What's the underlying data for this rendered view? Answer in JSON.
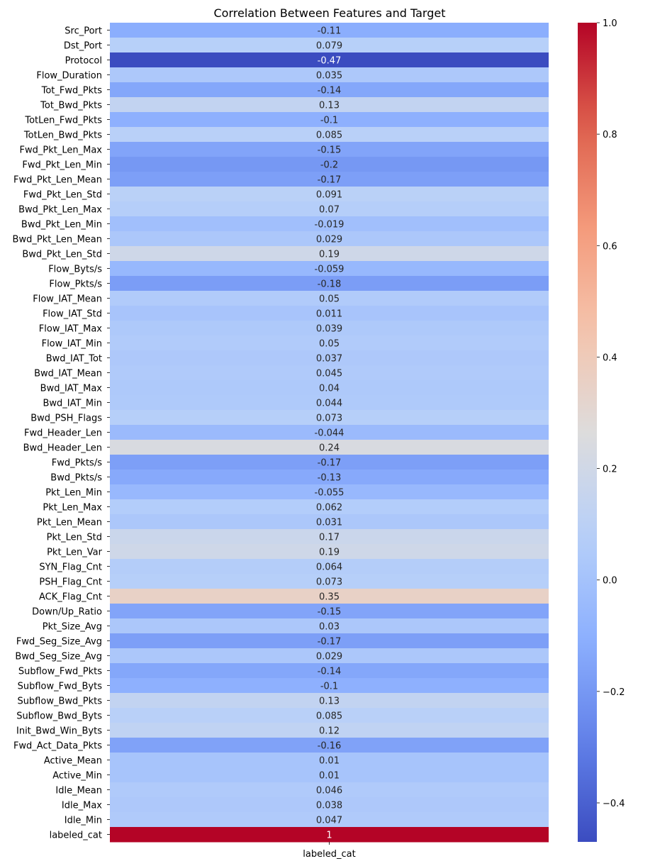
{
  "chart_data": {
    "type": "heatmap",
    "title": "Correlation Between Features and Target",
    "x_categories": [
      "labeled_cat"
    ],
    "rows": [
      {
        "label": "Src_Port",
        "value": -0.11,
        "text": "-0.11"
      },
      {
        "label": "Dst_Port",
        "value": 0.079,
        "text": "0.079"
      },
      {
        "label": "Protocol",
        "value": -0.47,
        "text": "-0.47"
      },
      {
        "label": "Flow_Duration",
        "value": 0.035,
        "text": "0.035"
      },
      {
        "label": "Tot_Fwd_Pkts",
        "value": -0.14,
        "text": "-0.14"
      },
      {
        "label": "Tot_Bwd_Pkts",
        "value": 0.13,
        "text": "0.13"
      },
      {
        "label": "TotLen_Fwd_Pkts",
        "value": -0.1,
        "text": "-0.1"
      },
      {
        "label": "TotLen_Bwd_Pkts",
        "value": 0.085,
        "text": "0.085"
      },
      {
        "label": "Fwd_Pkt_Len_Max",
        "value": -0.15,
        "text": "-0.15"
      },
      {
        "label": "Fwd_Pkt_Len_Min",
        "value": -0.2,
        "text": "-0.2"
      },
      {
        "label": "Fwd_Pkt_Len_Mean",
        "value": -0.17,
        "text": "-0.17"
      },
      {
        "label": "Fwd_Pkt_Len_Std",
        "value": 0.091,
        "text": "0.091"
      },
      {
        "label": "Bwd_Pkt_Len_Max",
        "value": 0.07,
        "text": "0.07"
      },
      {
        "label": "Bwd_Pkt_Len_Min",
        "value": -0.019,
        "text": "-0.019"
      },
      {
        "label": "Bwd_Pkt_Len_Mean",
        "value": 0.029,
        "text": "0.029"
      },
      {
        "label": "Bwd_Pkt_Len_Std",
        "value": 0.19,
        "text": "0.19"
      },
      {
        "label": "Flow_Byts/s",
        "value": -0.059,
        "text": "-0.059"
      },
      {
        "label": "Flow_Pkts/s",
        "value": -0.18,
        "text": "-0.18"
      },
      {
        "label": "Flow_IAT_Mean",
        "value": 0.05,
        "text": "0.05"
      },
      {
        "label": "Flow_IAT_Std",
        "value": 0.011,
        "text": "0.011"
      },
      {
        "label": "Flow_IAT_Max",
        "value": 0.039,
        "text": "0.039"
      },
      {
        "label": "Flow_IAT_Min",
        "value": 0.05,
        "text": "0.05"
      },
      {
        "label": "Bwd_IAT_Tot",
        "value": 0.037,
        "text": "0.037"
      },
      {
        "label": "Bwd_IAT_Mean",
        "value": 0.045,
        "text": "0.045"
      },
      {
        "label": "Bwd_IAT_Max",
        "value": 0.04,
        "text": "0.04"
      },
      {
        "label": "Bwd_IAT_Min",
        "value": 0.044,
        "text": "0.044"
      },
      {
        "label": "Bwd_PSH_Flags",
        "value": 0.073,
        "text": "0.073"
      },
      {
        "label": "Fwd_Header_Len",
        "value": -0.044,
        "text": "-0.044"
      },
      {
        "label": "Bwd_Header_Len",
        "value": 0.24,
        "text": "0.24"
      },
      {
        "label": "Fwd_Pkts/s",
        "value": -0.17,
        "text": "-0.17"
      },
      {
        "label": "Bwd_Pkts/s",
        "value": -0.13,
        "text": "-0.13"
      },
      {
        "label": "Pkt_Len_Min",
        "value": -0.055,
        "text": "-0.055"
      },
      {
        "label": "Pkt_Len_Max",
        "value": 0.062,
        "text": "0.062"
      },
      {
        "label": "Pkt_Len_Mean",
        "value": 0.031,
        "text": "0.031"
      },
      {
        "label": "Pkt_Len_Std",
        "value": 0.17,
        "text": "0.17"
      },
      {
        "label": "Pkt_Len_Var",
        "value": 0.19,
        "text": "0.19"
      },
      {
        "label": "SYN_Flag_Cnt",
        "value": 0.064,
        "text": "0.064"
      },
      {
        "label": "PSH_Flag_Cnt",
        "value": 0.073,
        "text": "0.073"
      },
      {
        "label": "ACK_Flag_Cnt",
        "value": 0.35,
        "text": "0.35"
      },
      {
        "label": "Down/Up_Ratio",
        "value": -0.15,
        "text": "-0.15"
      },
      {
        "label": "Pkt_Size_Avg",
        "value": 0.03,
        "text": "0.03"
      },
      {
        "label": "Fwd_Seg_Size_Avg",
        "value": -0.17,
        "text": "-0.17"
      },
      {
        "label": "Bwd_Seg_Size_Avg",
        "value": 0.029,
        "text": "0.029"
      },
      {
        "label": "Subflow_Fwd_Pkts",
        "value": -0.14,
        "text": "-0.14"
      },
      {
        "label": "Subflow_Fwd_Byts",
        "value": -0.1,
        "text": "-0.1"
      },
      {
        "label": "Subflow_Bwd_Pkts",
        "value": 0.13,
        "text": "0.13"
      },
      {
        "label": "Subflow_Bwd_Byts",
        "value": 0.085,
        "text": "0.085"
      },
      {
        "label": "Init_Bwd_Win_Byts",
        "value": 0.12,
        "text": "0.12"
      },
      {
        "label": "Fwd_Act_Data_Pkts",
        "value": -0.16,
        "text": "-0.16"
      },
      {
        "label": "Active_Mean",
        "value": 0.01,
        "text": "0.01"
      },
      {
        "label": "Active_Min",
        "value": 0.01,
        "text": "0.01"
      },
      {
        "label": "Idle_Mean",
        "value": 0.046,
        "text": "0.046"
      },
      {
        "label": "Idle_Max",
        "value": 0.038,
        "text": "0.038"
      },
      {
        "label": "Idle_Min",
        "value": 0.047,
        "text": "0.047"
      },
      {
        "label": "labeled_cat",
        "value": 1,
        "text": "1"
      }
    ],
    "colormap": "coolwarm",
    "vmin": -0.47,
    "vmax": 1.0,
    "colorbar_ticks": [
      {
        "value": -0.4,
        "label": "−0.4"
      },
      {
        "value": -0.2,
        "label": "−0.2"
      },
      {
        "value": 0.0,
        "label": "0.0"
      },
      {
        "value": 0.2,
        "label": "0.2"
      },
      {
        "value": 0.4,
        "label": "0.4"
      },
      {
        "value": 0.6,
        "label": "0.6"
      },
      {
        "value": 0.8,
        "label": "0.8"
      },
      {
        "value": 1.0,
        "label": "1.0"
      }
    ],
    "annotations": true,
    "grid": false
  }
}
